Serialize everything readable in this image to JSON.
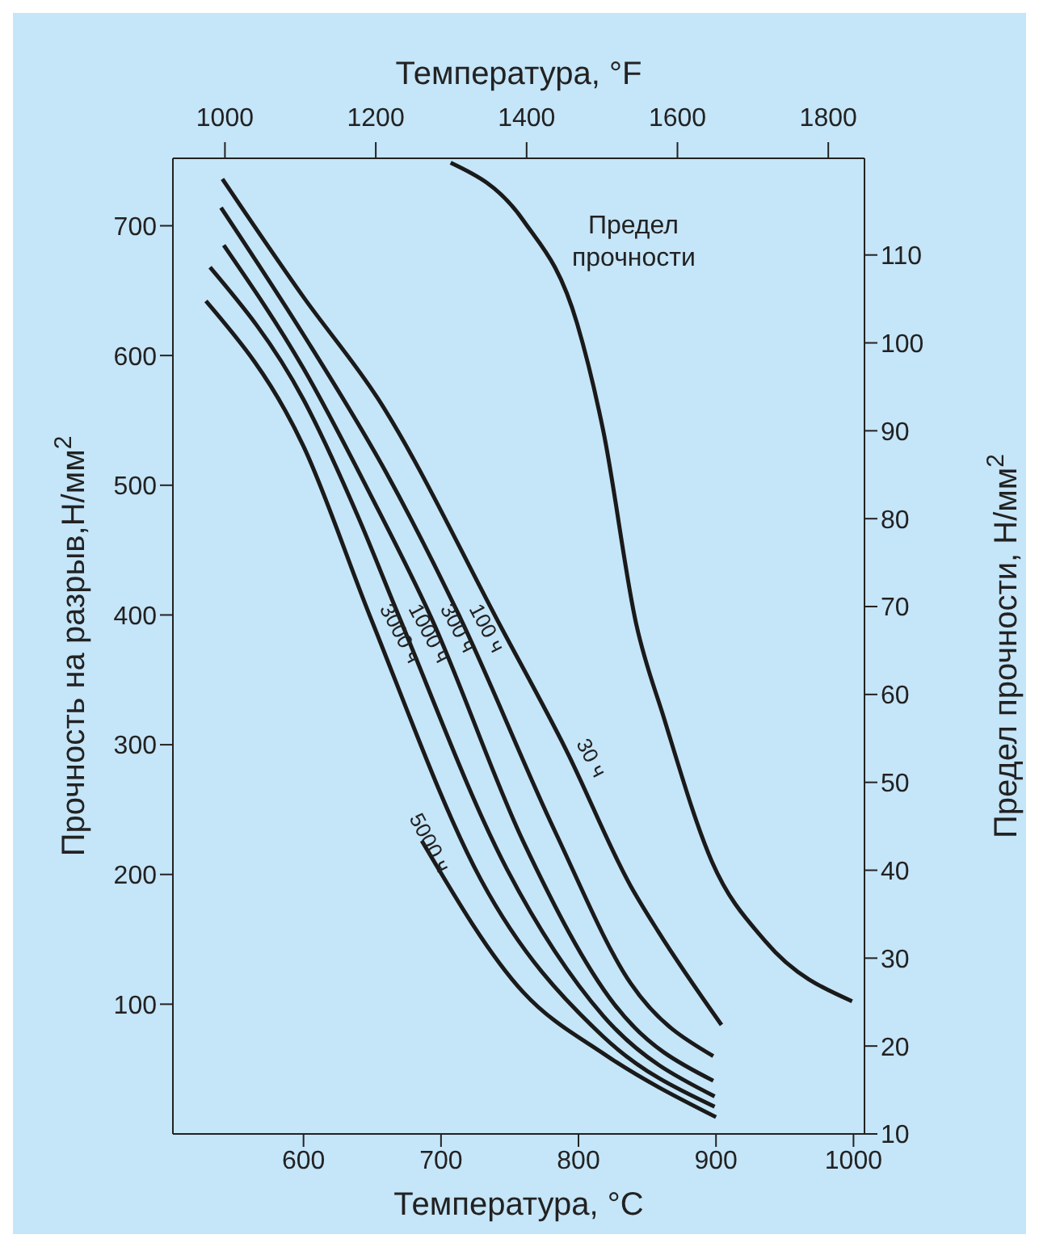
{
  "chart_data": {
    "type": "line",
    "xlabel": "Температура, °C",
    "x2label": "Температура, °F",
    "ylabel": "Прочность на разрыв,Н/мм$^{2}$",
    "y2label": "Предел прочности, Н/мм$^{2}$",
    "xlim": [
      505,
      1008
    ],
    "xticks": [
      600,
      700,
      800,
      900,
      1000
    ],
    "x2lim": [
      931,
      1848
    ],
    "x2ticks": [
      1000,
      1200,
      1400,
      1600,
      1800
    ],
    "ylim": [
      0,
      752
    ],
    "yticks": [
      100,
      200,
      300,
      400,
      500,
      600,
      700
    ],
    "y2lim": [
      10,
      121
    ],
    "y2ticks": [
      10,
      20,
      30,
      40,
      50,
      60,
      70,
      80,
      90,
      100,
      110
    ],
    "grid": false,
    "marker": "none",
    "line_style": "solid",
    "series": [
      {
        "name": "30 ч",
        "color": "#1a1a1a",
        "x": [
          541,
          600,
          654,
          744,
          791,
          838,
          858,
          904
        ],
        "values": [
          736,
          645,
          567,
          390,
          296,
          191,
          156,
          84
        ]
      },
      {
        "name": "100 ч",
        "color": "#1a1a1a",
        "x": [
          540,
          600,
          660,
          713,
          783,
          838,
          898
        ],
        "values": [
          714,
          616,
          510,
          400,
          233,
          116,
          60
        ]
      },
      {
        "name": "300 ч",
        "color": "#1a1a1a",
        "x": [
          542,
          600,
          650,
          692,
          760,
          826,
          898
        ],
        "values": [
          685,
          590,
          490,
          400,
          225,
          100,
          41
        ]
      },
      {
        "name": "1000 ч",
        "color": "#1a1a1a",
        "x": [
          532,
          600,
          640,
          669,
          748,
          818,
          899
        ],
        "values": [
          668,
          566,
          475,
          400,
          204,
          91,
          29
        ]
      },
      {
        "name": "3000 ч",
        "color": "#1a1a1a",
        "x": [
          529,
          600,
          648,
          729,
          818,
          899
        ],
        "values": [
          642,
          530,
          400,
          196,
          75,
          21
        ]
      },
      {
        "name": "5000 ч",
        "color": "#1a1a1a",
        "x": [
          686,
          760,
          818,
          900
        ],
        "values": [
          226,
          109,
          62,
          13
        ]
      },
      {
        "name": "Предел прочности",
        "color": "#1a1a1a",
        "axis": "y2",
        "x": [
          707,
          760,
          799,
          818,
          842,
          862,
          897,
          936,
          999
        ],
        "values": [
          120.5,
          113.9,
          102.2,
          90,
          68,
          57.4,
          41,
          31.9,
          25.1
        ]
      }
    ]
  }
}
